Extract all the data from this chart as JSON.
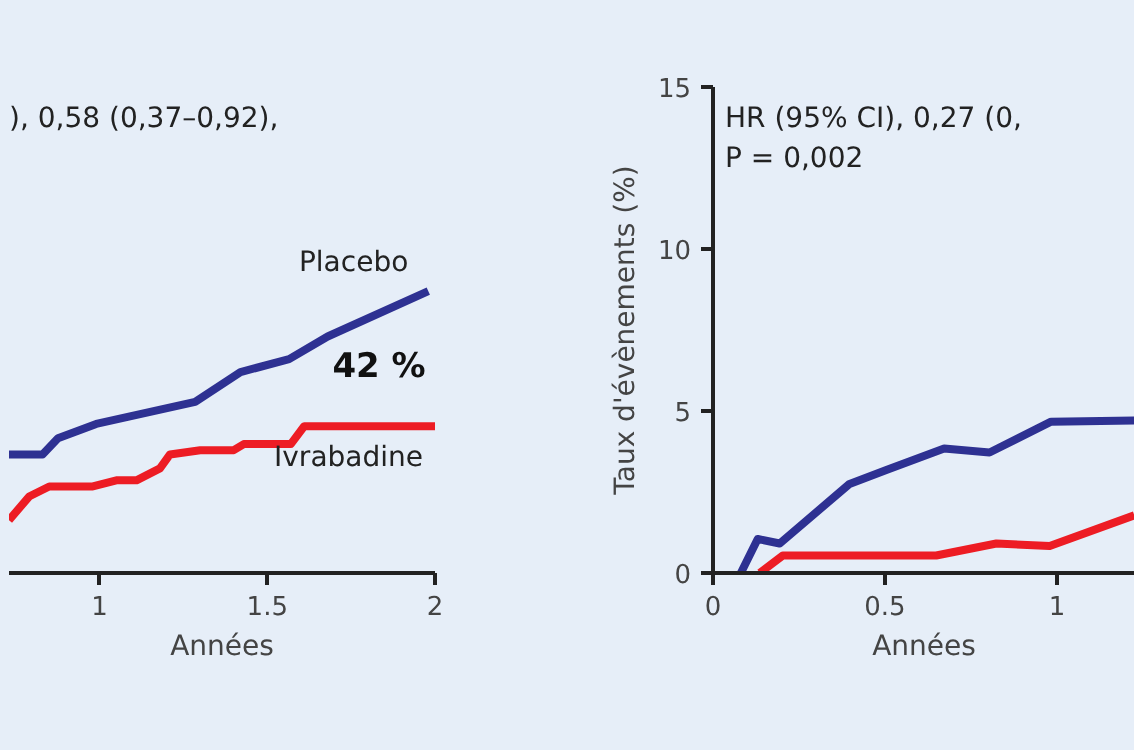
{
  "chart_data": [
    {
      "type": "line",
      "xlabel": "Années",
      "xlim": [
        0.73,
        2.0
      ],
      "xticks": [
        1,
        1.5,
        2
      ],
      "ylim": [
        0,
        15
      ],
      "tick_labels": "x",
      "grid": false,
      "annotations": [
        "), 0,58 (0,37–0,92),",
        "42 %"
      ],
      "series": [
        {
          "name": "Placebo",
          "color": "#2e3192",
          "x": [
            0.73,
            0.83,
            0.876,
            0.99,
            1.285,
            1.42,
            1.565,
            1.68,
            1.98
          ],
          "values": [
            3.66,
            3.66,
            4.16,
            4.6,
            5.28,
            6.2,
            6.6,
            7.3,
            8.7
          ]
        },
        {
          "name": "Ivrabadine",
          "color": "#ed1c24",
          "x": [
            0.73,
            0.79,
            0.85,
            0.98,
            1.05,
            1.11,
            1.18,
            1.21,
            1.3,
            1.4,
            1.43,
            1.57,
            1.61,
            2.0
          ],
          "values": [
            1.63,
            2.36,
            2.67,
            2.67,
            2.86,
            2.86,
            3.23,
            3.66,
            3.79,
            3.79,
            3.98,
            3.98,
            4.53,
            4.53
          ]
        }
      ]
    },
    {
      "type": "line",
      "xlabel": "Années",
      "ylabel": "Taux d'évènements (%)",
      "xlim": [
        0,
        1.227
      ],
      "xticks": [
        0,
        0.5,
        1
      ],
      "ylim": [
        0,
        15
      ],
      "yticks": [
        0,
        5,
        10,
        15
      ],
      "grid": false,
      "annotations": [
        "HR (95% CI), 0,27 (0,",
        "P = 0,002"
      ],
      "series": [
        {
          "color": "#2e3192",
          "x": [
            0.081,
            0.13,
            0.194,
            0.397,
            0.504,
            0.672,
            0.804,
            0.983,
            1.225
          ],
          "values": [
            0,
            1.05,
            0.91,
            2.75,
            3.18,
            3.84,
            3.72,
            4.67,
            4.71
          ]
        },
        {
          "color": "#ed1c24",
          "x": [
            0.136,
            0.203,
            0.649,
            0.824,
            0.979,
            1.225
          ],
          "values": [
            0,
            0.54,
            0.54,
            0.91,
            0.83,
            1.78
          ]
        }
      ]
    }
  ]
}
